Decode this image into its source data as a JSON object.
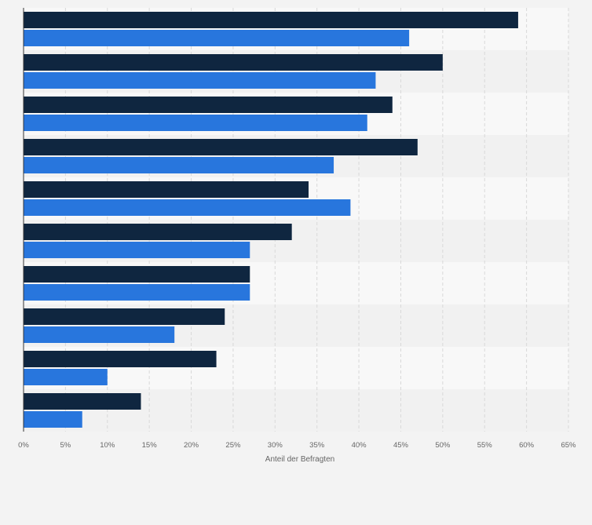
{
  "chart_data": {
    "type": "bar",
    "orientation": "horizontal",
    "categories": [
      "",
      "",
      "",
      "",
      "",
      "",
      "",
      "",
      "",
      ""
    ],
    "series": [
      {
        "values": [
          59,
          50,
          44,
          47,
          34,
          32,
          27,
          24,
          23,
          14
        ],
        "color": "#0f2640"
      },
      {
        "values": [
          46,
          42,
          41,
          37,
          39,
          27,
          27,
          18,
          10,
          7
        ],
        "color": "#2876dd"
      }
    ],
    "xlabel": "Anteil der Befragten",
    "ylabel": "",
    "xlim": [
      0,
      65
    ],
    "x_ticks": [
      0,
      5,
      10,
      15,
      20,
      25,
      30,
      35,
      40,
      45,
      50,
      55,
      60,
      65
    ],
    "x_tick_labels": [
      "0%",
      "5%",
      "10%",
      "15%",
      "20%",
      "25%",
      "30%",
      "35%",
      "40%",
      "45%",
      "50%",
      "55%",
      "60%",
      "65%"
    ],
    "grid": true,
    "legend": "none"
  },
  "colors": {
    "page_background": "#f3f3f3",
    "plot_band_light": "#f8f8f8",
    "plot_band_dark": "#f1f1f1",
    "gridline": "#d9d9d9",
    "axis_line": "#333333"
  }
}
